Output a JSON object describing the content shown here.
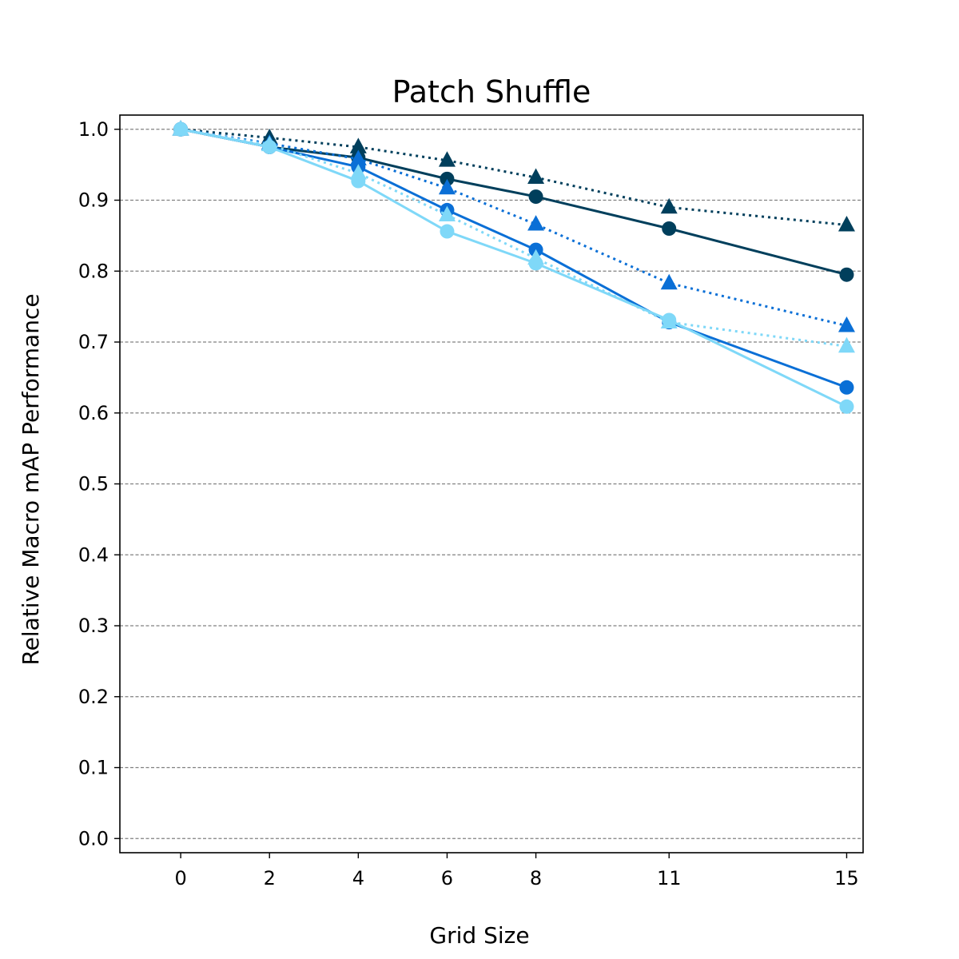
{
  "chart_data": {
    "type": "line",
    "title": "Patch Shuffle",
    "xlabel": "Grid Size",
    "ylabel": "Relative Macro mAP Performance",
    "x": [
      0,
      2,
      4,
      6,
      8,
      11,
      15
    ],
    "x_ticks": [
      "0",
      "2",
      "4",
      "6",
      "8",
      "11",
      "15"
    ],
    "y_ticks": [
      "0.0",
      "0.1",
      "0.2",
      "0.3",
      "0.4",
      "0.5",
      "0.6",
      "0.7",
      "0.8",
      "0.9",
      "1.0"
    ],
    "ylim": [
      -0.02,
      1.02
    ],
    "grid": "horizontal dashed",
    "series": [
      {
        "color": "#003f5c",
        "marker": "triangle",
        "linestyle": "dotted",
        "values": [
          1.0,
          0.988,
          0.975,
          0.956,
          0.932,
          0.89,
          0.865
        ]
      },
      {
        "color": "#003f5c",
        "marker": "circle",
        "linestyle": "solid",
        "values": [
          1.0,
          0.975,
          0.96,
          0.93,
          0.905,
          0.86,
          0.795
        ]
      },
      {
        "color": "#0a6fd6",
        "marker": "triangle",
        "linestyle": "dotted",
        "values": [
          1.0,
          0.98,
          0.958,
          0.917,
          0.866,
          0.783,
          0.723
        ]
      },
      {
        "color": "#0a6fd6",
        "marker": "circle",
        "linestyle": "solid",
        "values": [
          1.0,
          0.975,
          0.947,
          0.886,
          0.83,
          0.728,
          0.636
        ]
      },
      {
        "color": "#7fd8f8",
        "marker": "triangle",
        "linestyle": "dotted",
        "values": [
          1.0,
          0.978,
          0.938,
          0.879,
          0.818,
          0.728,
          0.694
        ]
      },
      {
        "color": "#7fd8f8",
        "marker": "circle",
        "linestyle": "solid",
        "values": [
          1.0,
          0.975,
          0.927,
          0.856,
          0.811,
          0.731,
          0.609
        ]
      }
    ]
  }
}
